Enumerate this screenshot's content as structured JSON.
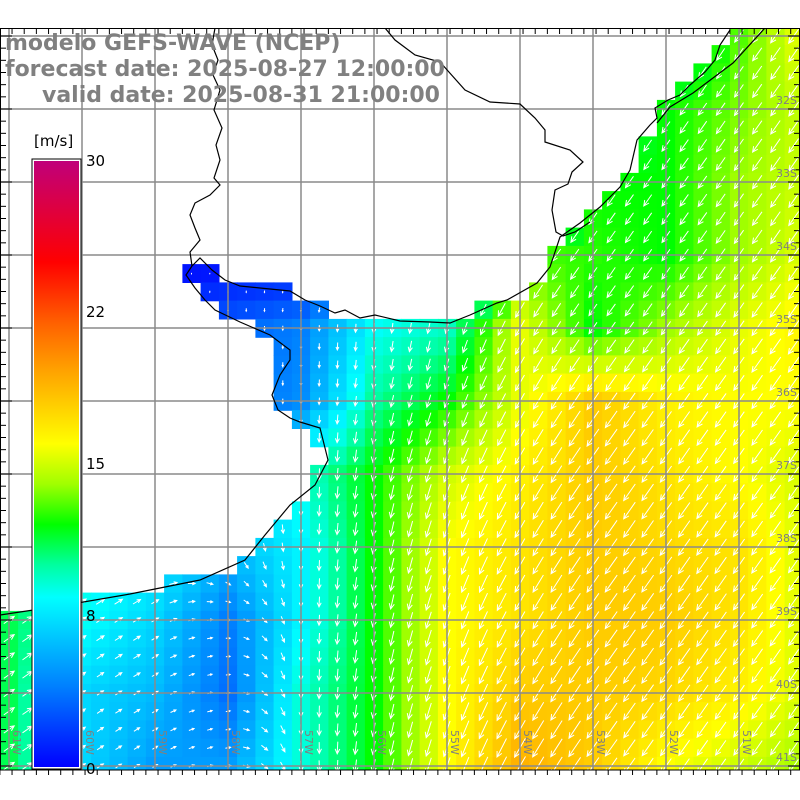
{
  "title": {
    "model": "modelo GEFS-WAVE (NCEP)",
    "forecast": "forecast date: 2025-08-27 12:00:00",
    "valid": "valid date: 2025-08-31 21:00:00"
  },
  "colorbar": {
    "unit": "[m/s]",
    "tick_labels": [
      "30",
      "22",
      "15",
      "8",
      "0"
    ],
    "range": [
      0,
      30
    ],
    "colorscale": [
      {
        "v": 0,
        "c": "#0000ff"
      },
      {
        "v": 4,
        "c": "#0080ff"
      },
      {
        "v": 8.4,
        "c": "#00ffff"
      },
      {
        "v": 10,
        "c": "#00ffa0"
      },
      {
        "v": 12,
        "c": "#00ff00"
      },
      {
        "v": 14,
        "c": "#a0ff00"
      },
      {
        "v": 16,
        "c": "#ffff00"
      },
      {
        "v": 19.7,
        "c": "#ffa000"
      },
      {
        "v": 22,
        "c": "#ff6000"
      },
      {
        "v": 25,
        "c": "#ff0000"
      },
      {
        "v": 30,
        "c": "#c0007a"
      }
    ]
  },
  "axes": {
    "lon_labels": [
      "61W",
      "60W",
      "59W",
      "58W",
      "57W",
      "56W",
      "55W",
      "54W",
      "53W",
      "52W",
      "51W"
    ],
    "lat_labels": [
      "32S",
      "33S",
      "34S",
      "35S",
      "36S",
      "37S",
      "38S",
      "39S",
      "40S",
      "41S"
    ]
  },
  "chart_data": {
    "type": "heatmap",
    "variable": "wind speed [m/s] with direction arrows",
    "lat_nodes_S": [
      31,
      32,
      33,
      34,
      35,
      36,
      37,
      38,
      39,
      40,
      41
    ],
    "lon_nodes": [
      -61,
      -60,
      -59,
      -58,
      -57,
      -56,
      -55,
      -54,
      -53,
      -52,
      -51,
      -50
    ],
    "speed": [
      [
        0,
        0,
        0,
        0,
        0,
        0,
        0,
        0,
        0,
        9,
        13,
        16
      ],
      [
        0,
        0,
        0,
        0,
        0,
        0,
        0,
        0,
        10,
        12,
        13.5,
        15
      ],
      [
        0,
        0,
        0,
        0,
        0,
        0,
        0,
        0,
        12,
        12,
        14,
        15
      ],
      [
        0,
        0,
        0,
        0,
        0,
        0,
        0,
        13,
        12.5,
        12,
        14,
        15.5
      ],
      [
        2,
        2,
        2,
        3,
        4,
        8.5,
        9.5,
        15.5,
        12,
        14,
        15.5,
        16.5
      ],
      [
        3,
        3,
        3,
        3,
        4.5,
        10,
        12,
        15.5,
        18,
        16.5,
        16,
        16
      ],
      [
        6,
        6,
        6,
        6,
        9,
        12,
        15,
        16.5,
        18,
        17,
        16,
        15
      ],
      [
        9,
        9,
        8,
        6,
        8,
        12,
        16,
        17,
        18,
        17.5,
        17,
        15
      ],
      [
        11,
        8.5,
        7,
        4,
        8,
        12,
        16,
        17,
        18,
        18,
        17,
        15
      ],
      [
        11,
        7,
        6,
        3.5,
        9,
        12,
        16,
        18,
        18,
        17.5,
        16.5,
        15
      ],
      [
        11,
        7,
        5,
        5,
        9,
        12,
        16,
        19,
        18,
        16,
        15,
        14
      ]
    ],
    "direction_to_deg": [
      [
        215,
        215,
        215,
        215,
        215,
        215,
        215,
        215,
        210,
        210,
        215,
        215
      ],
      [
        215,
        215,
        215,
        215,
        215,
        215,
        215,
        215,
        210,
        215,
        215,
        215
      ],
      [
        215,
        215,
        215,
        215,
        215,
        215,
        215,
        215,
        215,
        215,
        215,
        215
      ],
      [
        180,
        180,
        180,
        180,
        200,
        210,
        215,
        215,
        215,
        215,
        215,
        215
      ],
      [
        180,
        180,
        180,
        180,
        180,
        185,
        195,
        210,
        215,
        215,
        215,
        215
      ],
      [
        180,
        180,
        180,
        180,
        180,
        190,
        200,
        210,
        215,
        215,
        215,
        215
      ],
      [
        180,
        180,
        180,
        180,
        180,
        190,
        200,
        210,
        215,
        215,
        215,
        215
      ],
      [
        60,
        60,
        60,
        150,
        180,
        190,
        200,
        210,
        215,
        215,
        215,
        215
      ],
      [
        55,
        55,
        60,
        90,
        180,
        190,
        200,
        210,
        215,
        215,
        215,
        215
      ],
      [
        55,
        55,
        60,
        80,
        180,
        190,
        200,
        210,
        215,
        215,
        215,
        215
      ],
      [
        55,
        55,
        60,
        80,
        175,
        190,
        200,
        210,
        215,
        215,
        215,
        215
      ]
    ],
    "lon_range": [
      -61.12,
      -50.16
    ],
    "lat_range_S": [
      30.9,
      41.05
    ],
    "grid": true
  }
}
